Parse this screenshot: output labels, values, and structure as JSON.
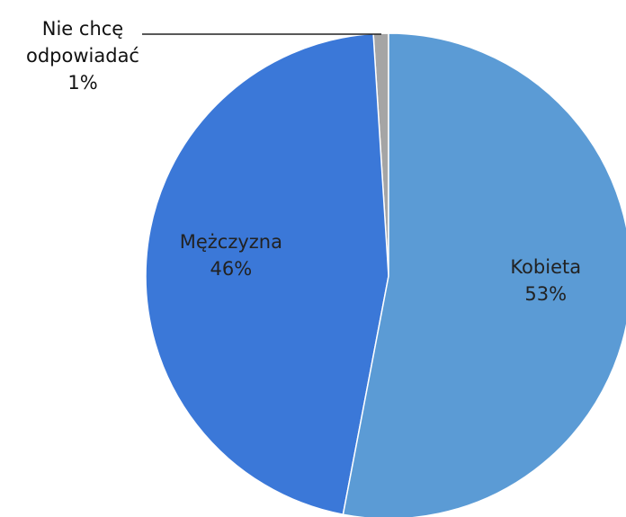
{
  "chart_data": {
    "type": "pie",
    "categories": [
      "Kobieta",
      "Mężczyzna",
      "Nie chcę odpowiadać"
    ],
    "values": [
      53,
      46,
      1
    ],
    "value_labels": [
      "53%",
      "46%",
      "1%"
    ],
    "colors": [
      "#5b9bd5",
      "#3b78d8",
      "#a5a5a5"
    ]
  }
}
